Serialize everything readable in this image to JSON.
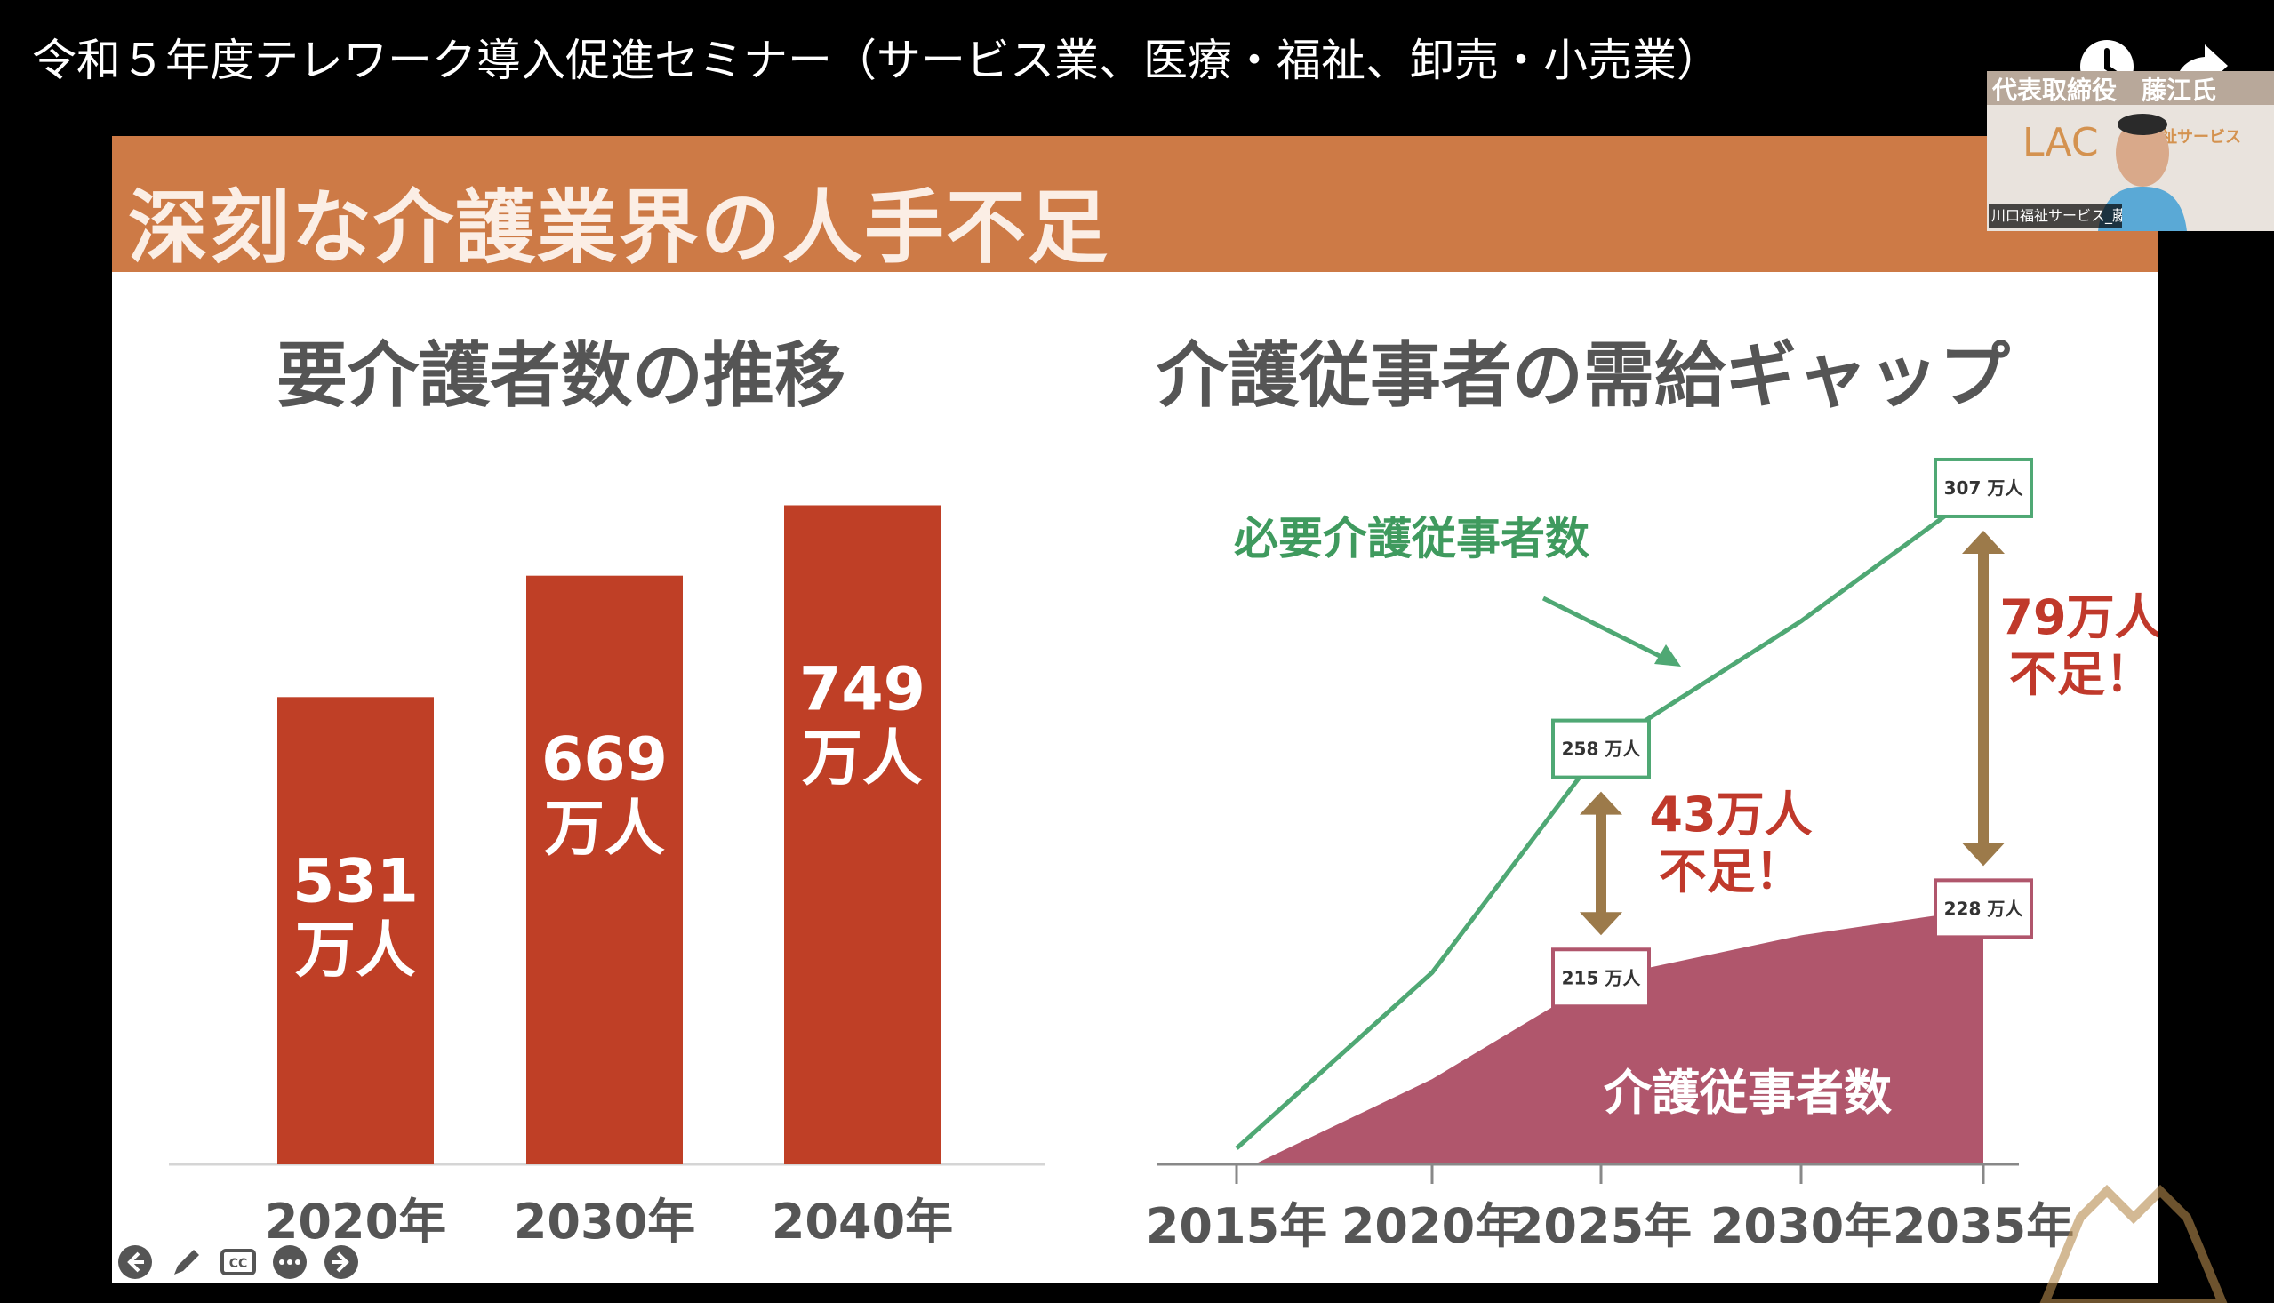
{
  "video": {
    "title": "令和５年度テレワーク導入促進セミナー（サービス業、医療・福祉、卸売・小売業）",
    "icons": [
      "clock-icon",
      "share-icon"
    ]
  },
  "slide": {
    "title": "深刻な介護業界の人手不足",
    "header_color": "#cd7a46",
    "left_title": "要介護者数の推移",
    "right_title": "介護従事者の需給ギャップ"
  },
  "chart_data": [
    {
      "type": "bar",
      "title": "要介護者数の推移",
      "categories": [
        "2020年",
        "2030年",
        "2040年"
      ],
      "values": [
        531,
        669,
        749
      ],
      "labels": [
        [
          "531",
          "万人"
        ],
        [
          "669",
          "万人"
        ],
        [
          "749",
          "万人"
        ]
      ],
      "unit": "万人",
      "bar_color": "#bf3f26",
      "ylim": [
        0,
        800
      ],
      "grid": false
    },
    {
      "type": "area",
      "title": "介護従事者の需給ギャップ",
      "categories": [
        "2015年",
        "2020年",
        "2025年",
        "2030年",
        "2035年"
      ],
      "series": [
        {
          "name": "必要介護従事者数",
          "style": "line",
          "color": "#4fa874",
          "values": [
            183,
            216,
            258,
            282,
            307
          ]
        },
        {
          "name": "介護従事者数",
          "style": "area",
          "color": "#b0566c",
          "values": [
            183,
            196,
            215,
            223,
            228
          ]
        }
      ],
      "callouts": [
        {
          "x": "2025年",
          "value": 258,
          "text": "258 万人",
          "border": "#4fa874"
        },
        {
          "x": "2035年",
          "value": 307,
          "text": "307 万人",
          "border": "#4fa874"
        },
        {
          "x": "2025年",
          "value": 215,
          "text": "215 万人",
          "border": "#b0566c"
        },
        {
          "x": "2035年",
          "value": 228,
          "text": "228 万人",
          "border": "#b0566c"
        }
      ],
      "gaps": [
        {
          "x": "2025年",
          "lines": [
            "43万人",
            "不足！"
          ],
          "arrow_color": "#9c7a4a"
        },
        {
          "x": "2035年",
          "lines": [
            "79万人",
            "不足！"
          ],
          "arrow_color": "#9c7a4a"
        }
      ],
      "ylim": [
        180,
        310
      ],
      "grid": false
    }
  ],
  "webcam": {
    "banner": "代表取締役　藤江氏",
    "logo": "LAC",
    "logo_sub": "福祉サービス",
    "caption": "川口福祉サービス_藤..."
  },
  "controls": [
    "back-icon",
    "pen-icon",
    "cc-icon",
    "more-icon",
    "forward-icon"
  ]
}
